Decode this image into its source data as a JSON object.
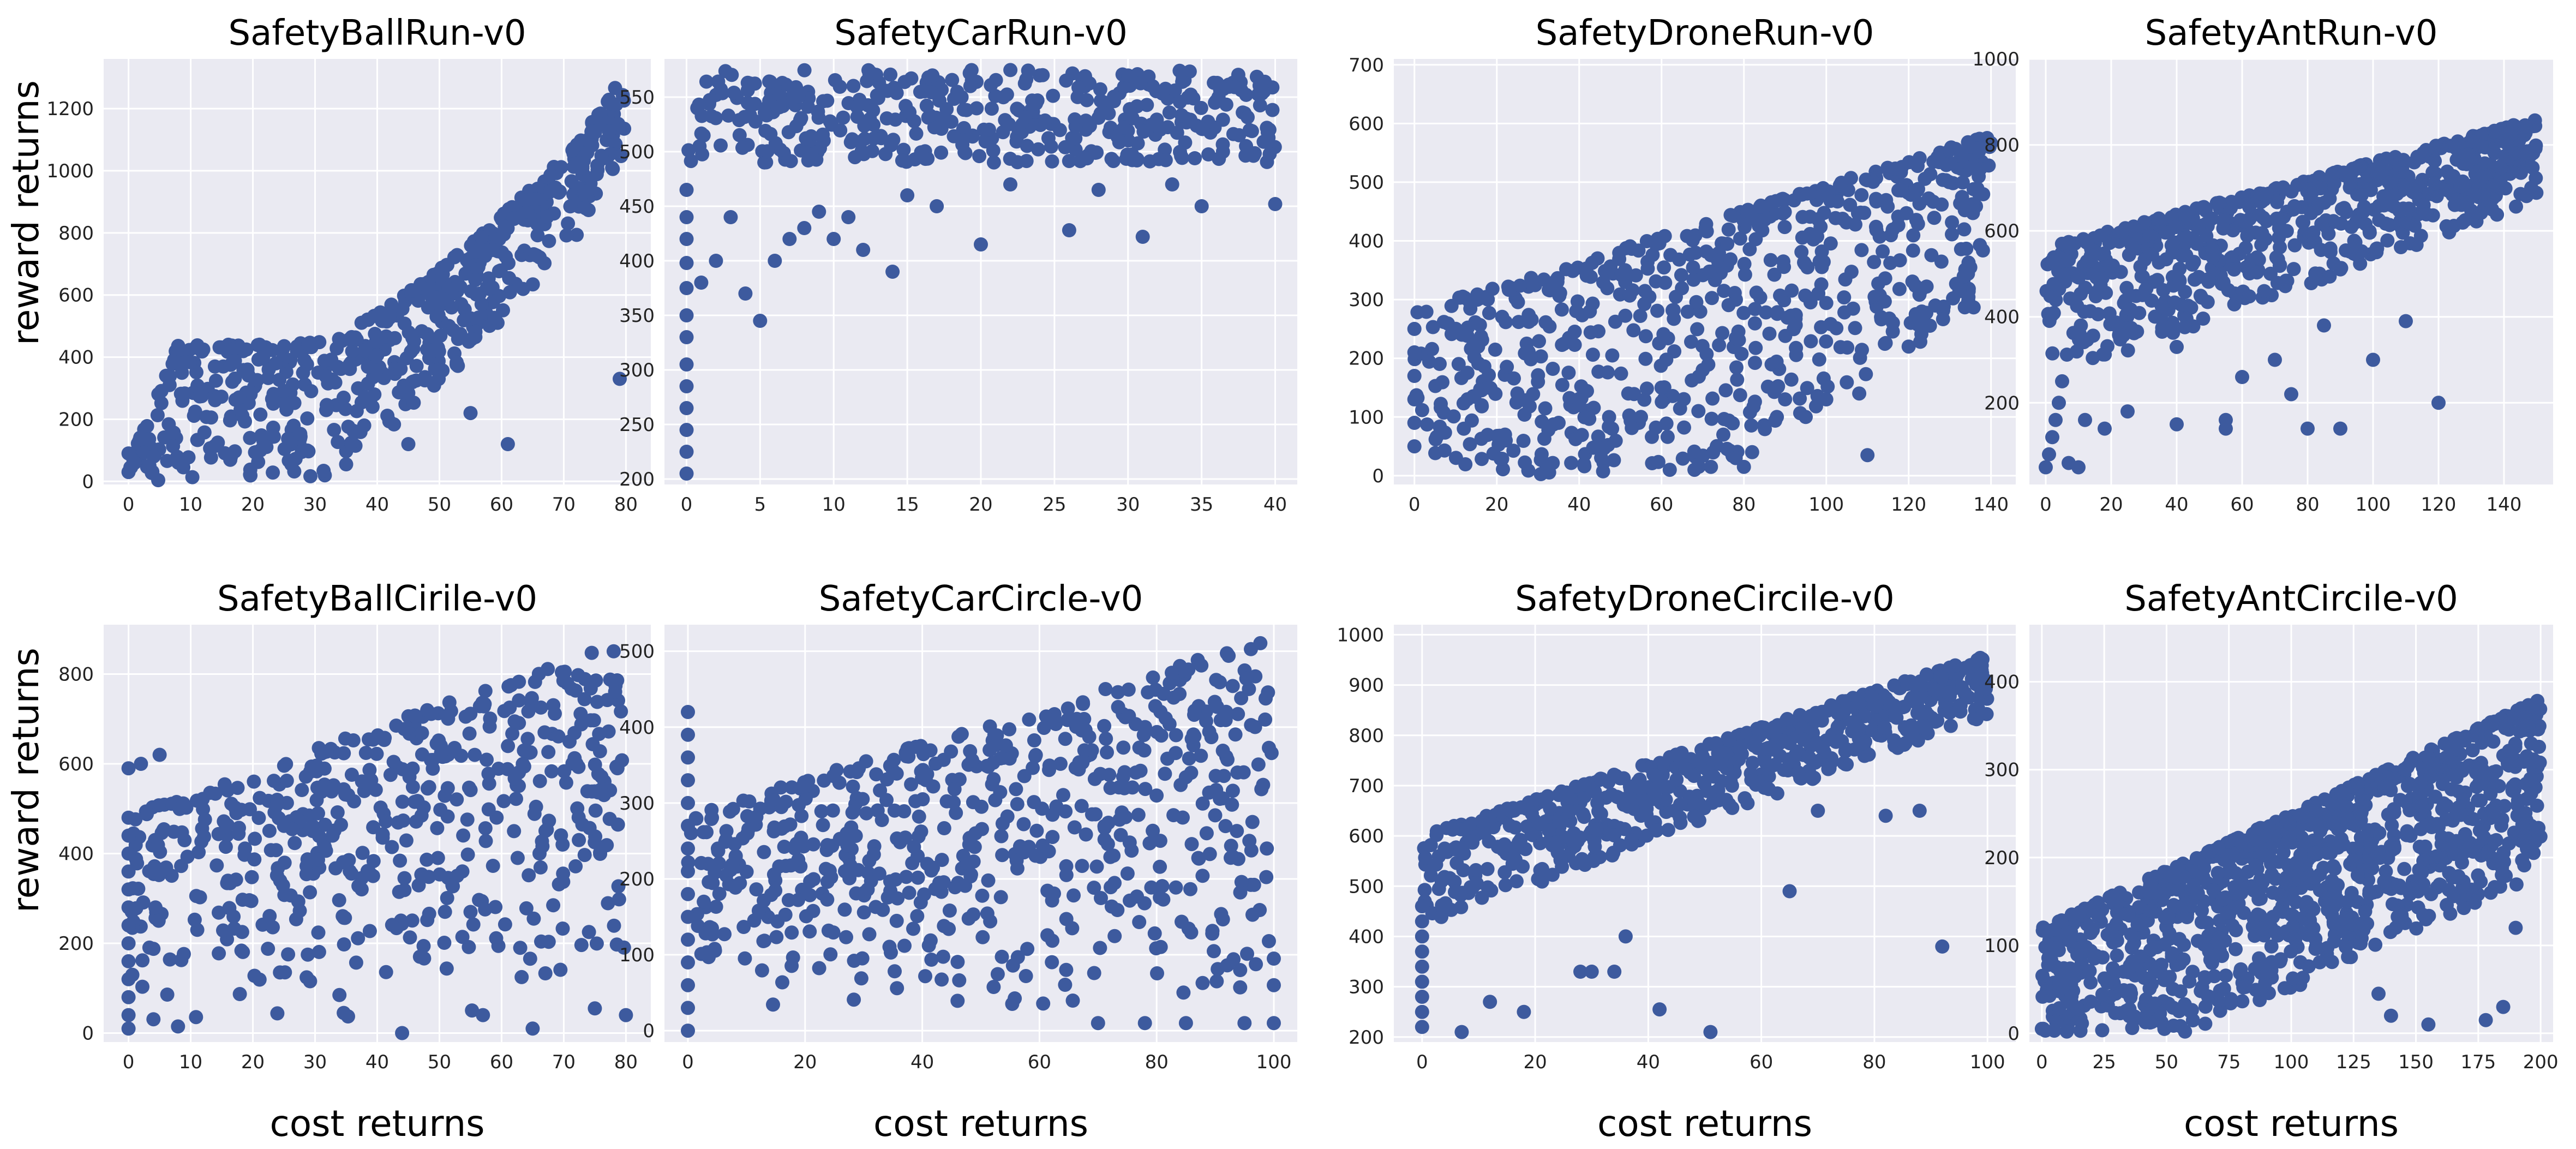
{
  "figure": {
    "ylabel": "reward returns",
    "xlabel": "cost returns",
    "colors": {
      "background": "#eaeaf2",
      "grid": "#ffffff",
      "point": "#3d5a9e"
    }
  },
  "chart_data": [
    {
      "type": "scatter",
      "title": "SafetyBallRun-v0",
      "xlim": [
        -4,
        84
      ],
      "ylim": [
        -10,
        1360
      ],
      "xticks": [
        0,
        10,
        20,
        30,
        40,
        50,
        60,
        70,
        80
      ],
      "yticks": [
        0,
        200,
        400,
        600,
        800,
        1000,
        1200
      ],
      "trend": {
        "kind": "curve",
        "n": 620,
        "x0": 0,
        "x1": 80,
        "xcap": 80,
        "base": [
          50,
          440,
          440,
          440,
          450,
          540,
          650,
          780,
          930,
          1080,
          1320
        ],
        "spread": 260,
        "ystart": 300
      },
      "outliers": [
        [
          35,
          55
        ],
        [
          45,
          120
        ],
        [
          61,
          120
        ],
        [
          55,
          220
        ],
        [
          79,
          330
        ],
        [
          0,
          30
        ],
        [
          0,
          90
        ],
        [
          1,
          60
        ]
      ],
      "grid": true
    },
    {
      "type": "scatter",
      "title": "SafetyCarRun-v0",
      "xlim": [
        -1.5,
        41.5
      ],
      "ylim": [
        195,
        585
      ],
      "xticks": [
        0,
        5,
        10,
        15,
        20,
        25,
        30,
        35,
        40
      ],
      "yticks": [
        200,
        250,
        300,
        350,
        400,
        450,
        500,
        550
      ],
      "trend": {
        "kind": "band",
        "n": 420,
        "x0": 0,
        "x1": 40,
        "xcap": 40,
        "ymin": 490,
        "ymax": 575
      },
      "outliers": [
        [
          0,
          205
        ],
        [
          0,
          225
        ],
        [
          0,
          245
        ],
        [
          0,
          265
        ],
        [
          0,
          285
        ],
        [
          0,
          305
        ],
        [
          0,
          330
        ],
        [
          0,
          350
        ],
        [
          0,
          375
        ],
        [
          0,
          398
        ],
        [
          0,
          420
        ],
        [
          0,
          440
        ],
        [
          0,
          465
        ],
        [
          1,
          380
        ],
        [
          2,
          400
        ],
        [
          3,
          440
        ],
        [
          4,
          370
        ],
        [
          5,
          345
        ],
        [
          6,
          400
        ],
        [
          8,
          430
        ],
        [
          10,
          420
        ],
        [
          12,
          410
        ],
        [
          14,
          390
        ],
        [
          20,
          415
        ],
        [
          26,
          428
        ],
        [
          31,
          422
        ],
        [
          35,
          450
        ],
        [
          40,
          452
        ],
        [
          9,
          445
        ],
        [
          15,
          460
        ],
        [
          17,
          450
        ],
        [
          22,
          470
        ],
        [
          28,
          465
        ],
        [
          33,
          470
        ],
        [
          7,
          420
        ],
        [
          11,
          440
        ]
      ],
      "grid": true
    },
    {
      "type": "scatter",
      "title": "SafetyDroneRun-v0",
      "xlim": [
        -5,
        146
      ],
      "ylim": [
        -15,
        710
      ],
      "xticks": [
        0,
        20,
        40,
        60,
        80,
        100,
        120,
        140
      ],
      "yticks": [
        0,
        100,
        200,
        300,
        400,
        500,
        600,
        700
      ],
      "trend": {
        "kind": "line",
        "n": 650,
        "x0": 0,
        "x1": 140,
        "xcap": 140,
        "base": [
          280,
          580
        ],
        "spread": 280,
        "ystart": 300
      },
      "outliers": [
        [
          0,
          50
        ],
        [
          0,
          90
        ],
        [
          0,
          130
        ],
        [
          0,
          170
        ],
        [
          0,
          210
        ],
        [
          0,
          250
        ],
        [
          62,
          10
        ],
        [
          68,
          10
        ],
        [
          72,
          15
        ],
        [
          78,
          30
        ],
        [
          80,
          15
        ],
        [
          82,
          40
        ],
        [
          110,
          35
        ],
        [
          95,
          100
        ],
        [
          100,
          130
        ],
        [
          108,
          140
        ],
        [
          88,
          100
        ],
        [
          90,
          130
        ],
        [
          75,
          70
        ],
        [
          12,
          80
        ],
        [
          22,
          70
        ],
        [
          35,
          90
        ],
        [
          48,
          80
        ],
        [
          55,
          100
        ],
        [
          25,
          140
        ],
        [
          30,
          160
        ],
        [
          40,
          120
        ],
        [
          60,
          150
        ],
        [
          70,
          180
        ],
        [
          120,
          220
        ]
      ],
      "grid": true
    },
    {
      "type": "scatter",
      "title": "SafetyAntRun-v0",
      "xlim": [
        -5,
        155
      ],
      "ylim": [
        10,
        1000
      ],
      "xticks": [
        0,
        20,
        40,
        60,
        80,
        100,
        120,
        140
      ],
      "yticks": [
        200,
        400,
        600,
        800,
        1000
      ],
      "trend": {
        "kind": "line",
        "n": 700,
        "x0": 0,
        "x1": 150,
        "xcap": 150,
        "base": [
          560,
          860
        ],
        "spread": 190,
        "ystart": 120
      },
      "outliers": [
        [
          0,
          50
        ],
        [
          1,
          80
        ],
        [
          2,
          120
        ],
        [
          3,
          160
        ],
        [
          4,
          200
        ],
        [
          5,
          250
        ],
        [
          7,
          60
        ],
        [
          10,
          50
        ],
        [
          12,
          160
        ],
        [
          18,
          140
        ],
        [
          25,
          180
        ],
        [
          40,
          150
        ],
        [
          55,
          140
        ],
        [
          55,
          160
        ],
        [
          75,
          220
        ],
        [
          80,
          140
        ],
        [
          90,
          140
        ],
        [
          120,
          200
        ],
        [
          100,
          300
        ],
        [
          85,
          380
        ],
        [
          110,
          390
        ],
        [
          60,
          260
        ],
        [
          70,
          300
        ],
        [
          40,
          330
        ]
      ],
      "grid": true
    },
    {
      "type": "scatter",
      "title": "SafetyBallCirile-v0",
      "xlim": [
        -4,
        84
      ],
      "ylim": [
        -20,
        910
      ],
      "xticks": [
        0,
        10,
        20,
        30,
        40,
        50,
        60,
        70,
        80
      ],
      "yticks": [
        0,
        200,
        400,
        600,
        800
      ],
      "trend": {
        "kind": "scatter",
        "n": 520,
        "x0": 0,
        "x1": 80,
        "xcap": 80,
        "ymin": 0,
        "ymax": 880
      },
      "outliers": [
        [
          0,
          10
        ],
        [
          0,
          40
        ],
        [
          0,
          80
        ],
        [
          0,
          120
        ],
        [
          0,
          160
        ],
        [
          0,
          200
        ],
        [
          0,
          240
        ],
        [
          0,
          280
        ],
        [
          0,
          320
        ],
        [
          0,
          360
        ],
        [
          0,
          400
        ],
        [
          0,
          440
        ],
        [
          0,
          480
        ],
        [
          0,
          590
        ],
        [
          2,
          600
        ],
        [
          5,
          620
        ],
        [
          44,
          0
        ],
        [
          65,
          10
        ],
        [
          80,
          40
        ],
        [
          75,
          55
        ],
        [
          63,
          190
        ],
        [
          57,
          40
        ]
      ],
      "grid": true
    },
    {
      "type": "scatter",
      "title": "SafetyCarCircle-v0",
      "xlim": [
        -4,
        104
      ],
      "ylim": [
        -15,
        535
      ],
      "xticks": [
        0,
        20,
        40,
        60,
        80,
        100
      ],
      "yticks": [
        0,
        100,
        200,
        300,
        400,
        500
      ],
      "trend": {
        "kind": "scatter",
        "n": 620,
        "x0": 0,
        "x1": 100,
        "xcap": 100,
        "ymin": 0,
        "ymax": 520
      },
      "outliers": [
        [
          0,
          0
        ],
        [
          0,
          30
        ],
        [
          0,
          60
        ],
        [
          0,
          90
        ],
        [
          0,
          120
        ],
        [
          0,
          150
        ],
        [
          0,
          180
        ],
        [
          0,
          210
        ],
        [
          0,
          240
        ],
        [
          0,
          270
        ],
        [
          0,
          300
        ],
        [
          0,
          330
        ],
        [
          0,
          360
        ],
        [
          0,
          390
        ],
        [
          0,
          420
        ],
        [
          100,
          10
        ],
        [
          100,
          60
        ],
        [
          100,
          95
        ],
        [
          95,
          10
        ],
        [
          85,
          10
        ],
        [
          78,
          10
        ],
        [
          70,
          10
        ]
      ],
      "grid": true
    },
    {
      "type": "scatter",
      "title": "SafetyDroneCircile-v0",
      "xlim": [
        -5,
        105
      ],
      "ylim": [
        190,
        1020
      ],
      "xticks": [
        0,
        20,
        40,
        60,
        80,
        100
      ],
      "yticks": [
        200,
        300,
        400,
        500,
        600,
        700,
        800,
        900,
        1000
      ],
      "trend": {
        "kind": "line",
        "n": 650,
        "x0": 0,
        "x1": 100,
        "xcap": 100,
        "base": [
          600,
          960
        ],
        "spread": 120,
        "ystart": 60
      },
      "outliers": [
        [
          0,
          220
        ],
        [
          0,
          250
        ],
        [
          0,
          280
        ],
        [
          0,
          310
        ],
        [
          0,
          340
        ],
        [
          0,
          370
        ],
        [
          0,
          400
        ],
        [
          0,
          430
        ],
        [
          0,
          460
        ],
        [
          7,
          210
        ],
        [
          12,
          270
        ],
        [
          18,
          250
        ],
        [
          28,
          330
        ],
        [
          30,
          330
        ],
        [
          34,
          330
        ],
        [
          36,
          400
        ],
        [
          42,
          255
        ],
        [
          51,
          210
        ],
        [
          65,
          490
        ],
        [
          92,
          380
        ],
        [
          82,
          640
        ],
        [
          70,
          650
        ],
        [
          88,
          650
        ]
      ],
      "grid": true
    },
    {
      "type": "scatter",
      "title": "SafetyAntCircile-v0",
      "xlim": [
        -5,
        205
      ],
      "ylim": [
        -10,
        465
      ],
      "xticks": [
        0,
        25,
        50,
        75,
        100,
        125,
        150,
        175,
        200
      ],
      "yticks": [
        0,
        100,
        200,
        300,
        400
      ],
      "trend": {
        "kind": "line",
        "n": 1100,
        "x0": 0,
        "x1": 200,
        "xcap": 200,
        "base": [
          120,
          380
        ],
        "spread": 200,
        "ystart": 0
      },
      "outliers": [
        [
          0,
          5
        ],
        [
          5,
          3
        ],
        [
          10,
          2
        ],
        [
          155,
          10
        ],
        [
          178,
          15
        ],
        [
          185,
          30
        ],
        [
          135,
          45
        ],
        [
          140,
          20
        ],
        [
          190,
          120
        ],
        [
          180,
          160
        ]
      ],
      "grid": true
    }
  ]
}
